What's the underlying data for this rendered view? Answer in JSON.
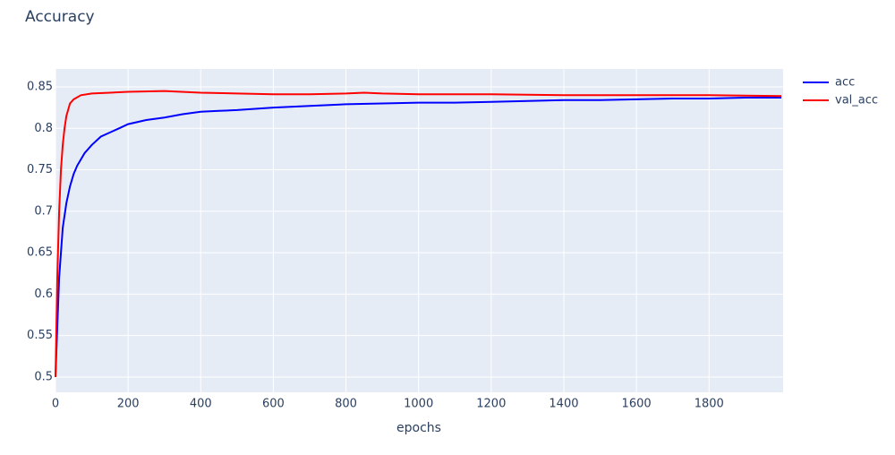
{
  "chart_data": {
    "type": "line",
    "title": "Accuracy",
    "x_label": "epochs",
    "xlim": [
      0,
      2004
    ],
    "ylim": [
      0.4816,
      0.8716
    ],
    "xticks": [
      0,
      200,
      400,
      600,
      800,
      1000,
      1200,
      1400,
      1600,
      1800
    ],
    "yticks": [
      0.5,
      0.55,
      0.6,
      0.65,
      0.7,
      0.75,
      0.8,
      0.85
    ],
    "grid": true,
    "legend": "top-right",
    "background": "#e5ecf6",
    "series": [
      {
        "name": "acc",
        "color": "#0000ff",
        "x": [
          0,
          5,
          10,
          15,
          20,
          30,
          40,
          50,
          60,
          80,
          100,
          125,
          150,
          175,
          200,
          250,
          300,
          350,
          400,
          450,
          500,
          600,
          700,
          800,
          900,
          1000,
          1100,
          1200,
          1300,
          1400,
          1500,
          1600,
          1700,
          1800,
          1900,
          1999
        ],
        "values": [
          0.5,
          0.56,
          0.62,
          0.65,
          0.68,
          0.71,
          0.73,
          0.745,
          0.755,
          0.77,
          0.78,
          0.79,
          0.795,
          0.8,
          0.805,
          0.81,
          0.813,
          0.817,
          0.82,
          0.821,
          0.822,
          0.825,
          0.827,
          0.829,
          0.83,
          0.831,
          0.831,
          0.832,
          0.833,
          0.834,
          0.834,
          0.835,
          0.836,
          0.836,
          0.837,
          0.837
        ]
      },
      {
        "name": "val_acc",
        "color": "#ff0000",
        "x": [
          0,
          5,
          10,
          15,
          20,
          25,
          30,
          40,
          50,
          70,
          100,
          150,
          200,
          300,
          400,
          500,
          600,
          700,
          800,
          850,
          900,
          1000,
          1200,
          1400,
          1600,
          1800,
          1999
        ],
        "values": [
          0.5,
          0.62,
          0.7,
          0.75,
          0.78,
          0.8,
          0.815,
          0.83,
          0.835,
          0.84,
          0.842,
          0.843,
          0.844,
          0.845,
          0.843,
          0.842,
          0.841,
          0.841,
          0.842,
          0.843,
          0.842,
          0.841,
          0.841,
          0.84,
          0.84,
          0.84,
          0.839
        ]
      }
    ]
  }
}
